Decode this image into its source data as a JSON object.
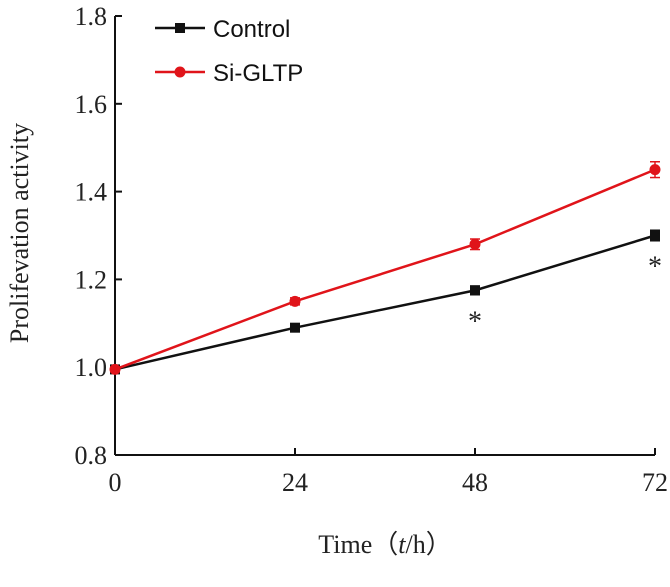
{
  "chart_data": {
    "type": "line",
    "x": [
      0,
      24,
      48,
      72
    ],
    "xlabel_prefix": "Time（",
    "xlabel_var": "t",
    "xlabel_suffix": "/h）",
    "ylabel": "Prolifevation activity",
    "xlim": [
      0,
      72
    ],
    "ylim": [
      0.8,
      1.8
    ],
    "xticks": [
      "0",
      "24",
      "48",
      "72"
    ],
    "yticks": [
      "0.8",
      "1.0",
      "1.2",
      "1.4",
      "1.6",
      "1.8"
    ],
    "ytick_values": [
      0.8,
      1.0,
      1.2,
      1.4,
      1.6,
      1.8
    ],
    "grid": false,
    "legend_position": "top-left",
    "series": [
      {
        "name": "Control",
        "values": [
          0.995,
          1.09,
          1.175,
          1.3
        ],
        "errors": [
          0.005,
          0.008,
          0.01,
          0.012
        ],
        "color": "#111111",
        "marker": "square"
      },
      {
        "name": "Si-GLTP",
        "values": [
          0.995,
          1.15,
          1.28,
          1.45
        ],
        "errors": [
          0.005,
          0.008,
          0.012,
          0.018
        ],
        "color": "#e0141a",
        "marker": "circle"
      }
    ],
    "annotations": [
      {
        "text": "*",
        "x": 48,
        "y": 1.175
      },
      {
        "text": "*",
        "x": 72,
        "y": 1.3
      }
    ]
  }
}
